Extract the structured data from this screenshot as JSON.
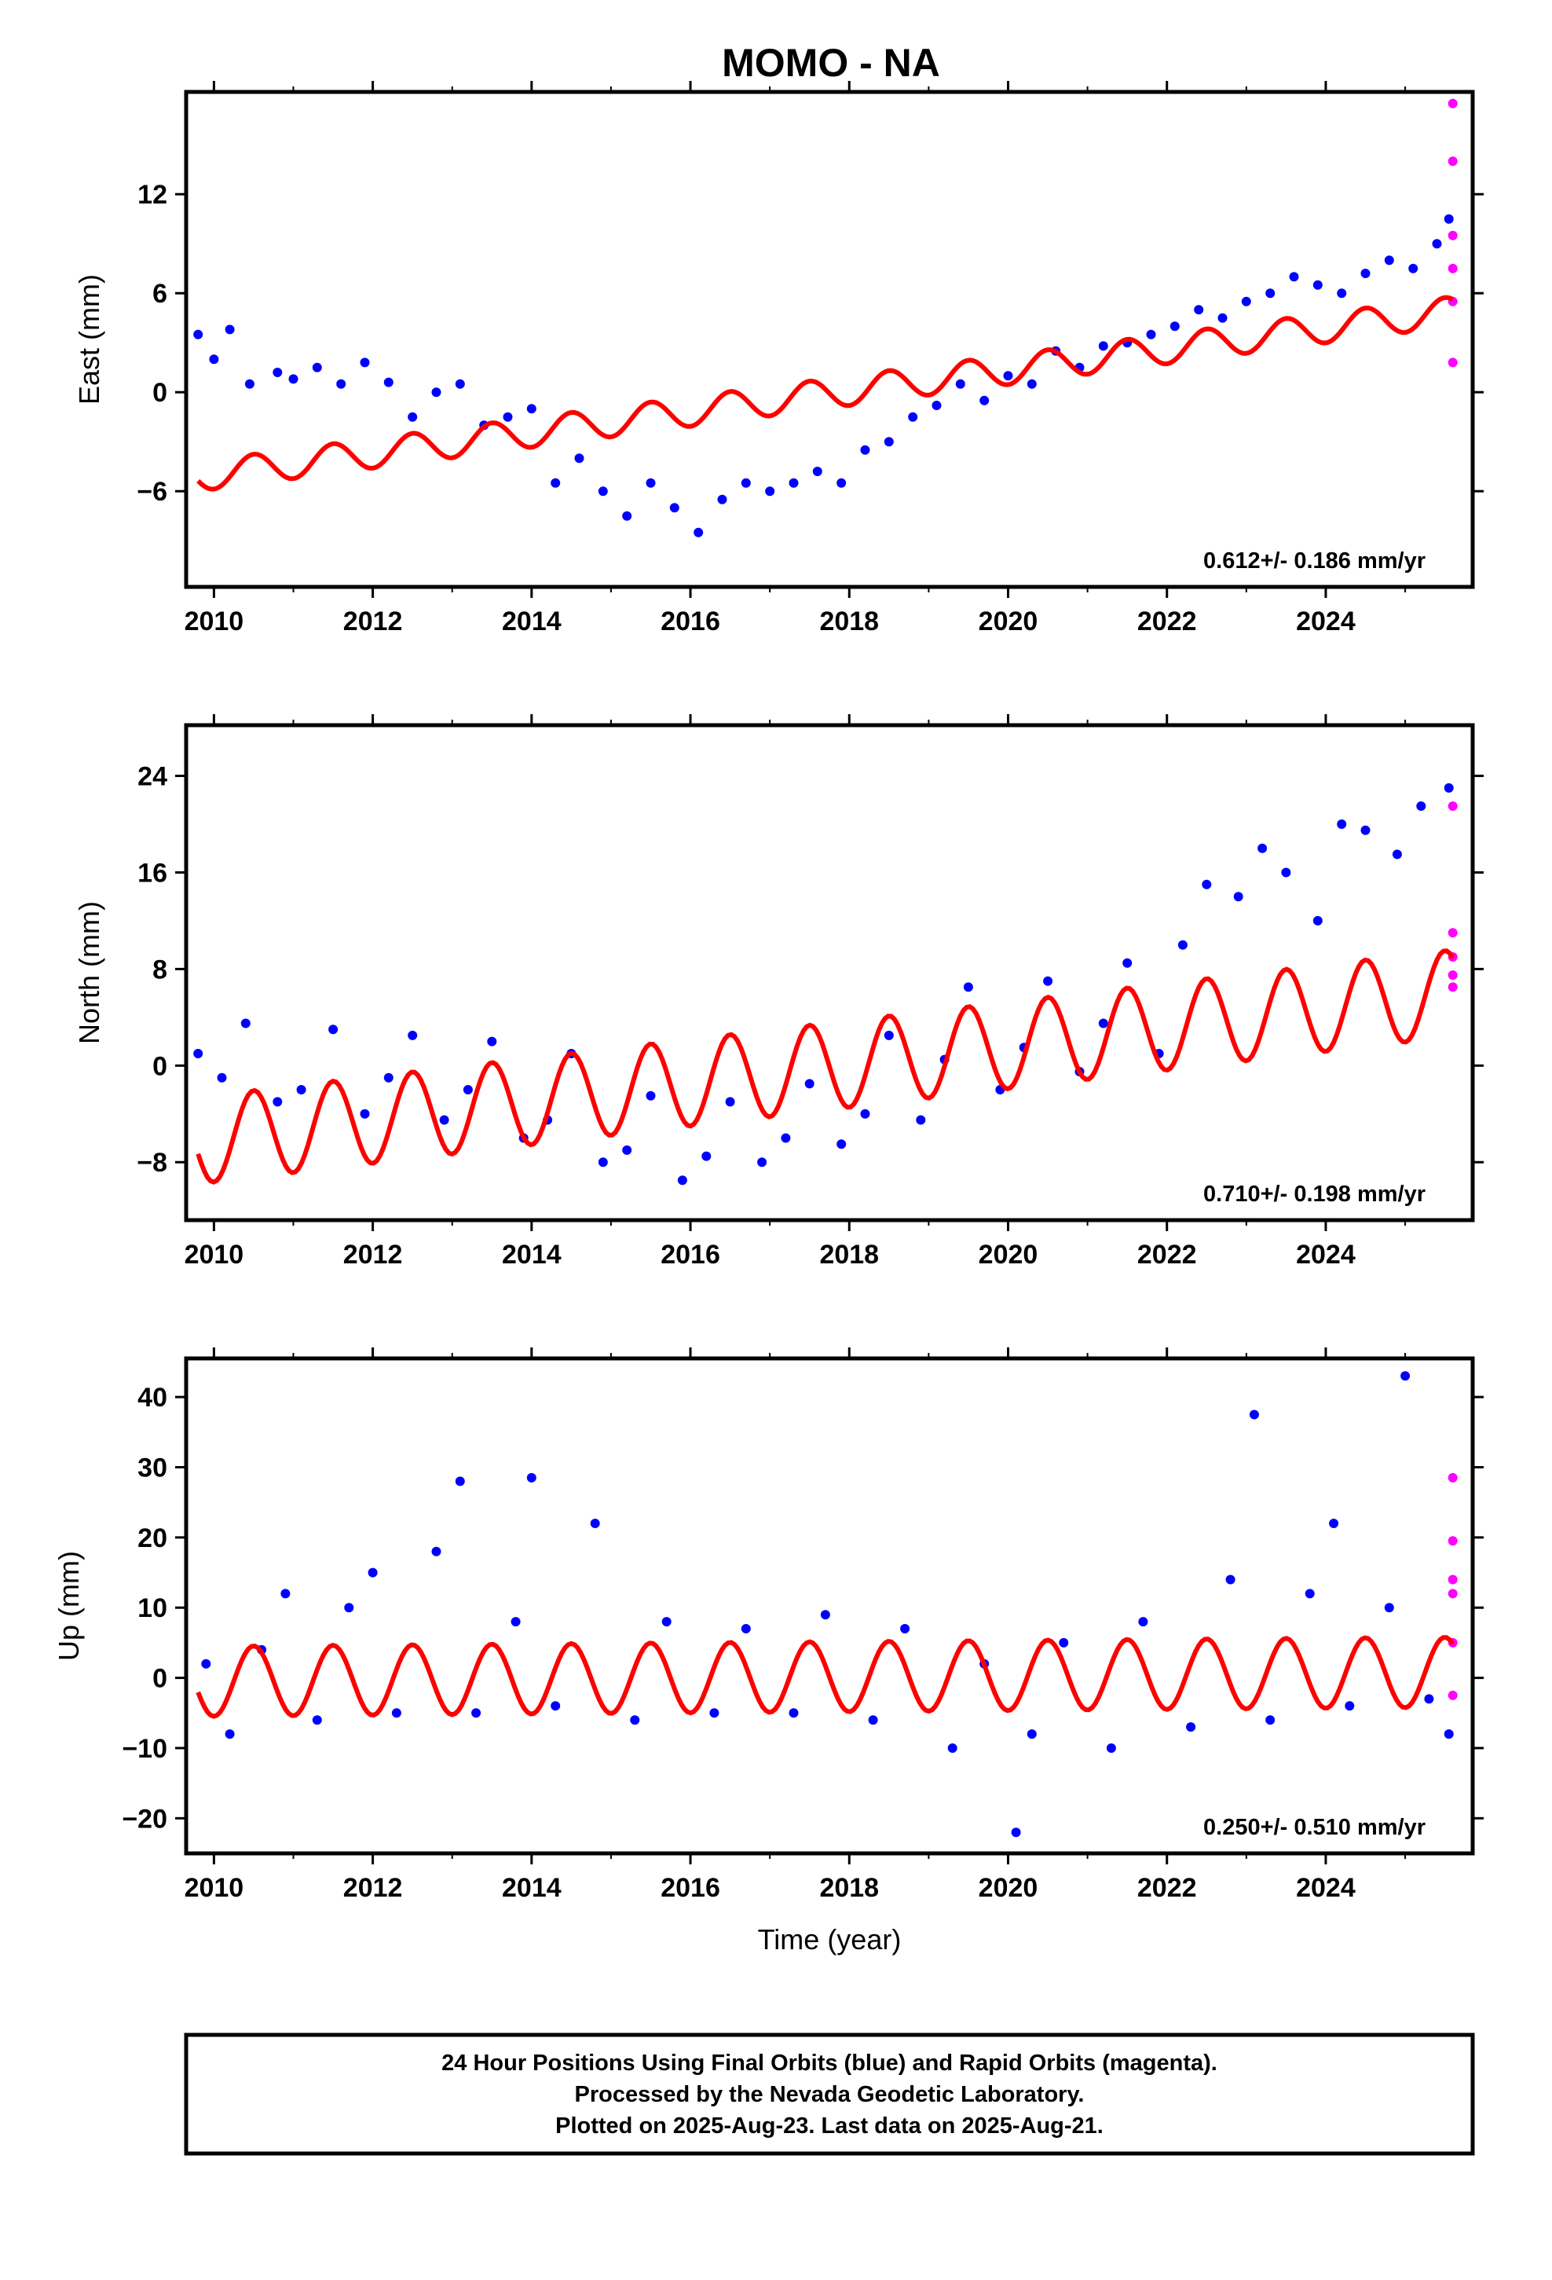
{
  "title": "MOMO - NA",
  "chart_data": [
    {
      "type": "scatter",
      "ylabel": "East (mm)",
      "xlabel": "",
      "xlim": [
        2009.65,
        2025.85
      ],
      "ylim": [
        -11.8,
        18.2
      ],
      "xticks": [
        2010,
        2012,
        2014,
        2016,
        2018,
        2020,
        2022,
        2024
      ],
      "yticks": [
        -6,
        0,
        6,
        12
      ],
      "rate_label": "0.612+/- 0.186 mm/yr",
      "series": [
        {
          "color": "#0000ff",
          "x": [
            2009.8,
            2010.0,
            2010.2,
            2010.45,
            2010.8,
            2011.0,
            2011.3,
            2011.6,
            2011.9,
            2012.2,
            2012.5,
            2012.8,
            2013.1,
            2013.4,
            2013.7,
            2014.0,
            2014.3,
            2014.6,
            2014.9,
            2015.2,
            2015.5,
            2015.8,
            2016.1,
            2016.4,
            2016.7,
            2017.0,
            2017.3,
            2017.6,
            2017.9,
            2018.2,
            2018.5,
            2018.8,
            2019.1,
            2019.4,
            2019.7,
            2020.0,
            2020.3,
            2020.6,
            2020.9,
            2021.2,
            2021.5,
            2021.8,
            2022.1,
            2022.4,
            2022.7,
            2023.0,
            2023.3,
            2023.6,
            2023.9,
            2024.2,
            2024.5,
            2024.8,
            2025.1,
            2025.4,
            2025.55
          ],
          "y": [
            3.5,
            2.0,
            3.8,
            0.5,
            1.2,
            0.8,
            1.5,
            0.5,
            1.8,
            0.6,
            -1.5,
            0.0,
            0.5,
            -2.0,
            -1.5,
            -1.0,
            -5.5,
            -4.0,
            -6.0,
            -7.5,
            -5.5,
            -7.0,
            -8.5,
            -6.5,
            -5.5,
            -6.0,
            -5.5,
            -4.8,
            -5.5,
            -3.5,
            -3.0,
            -1.5,
            -0.8,
            0.5,
            -0.5,
            1.0,
            0.5,
            2.5,
            1.5,
            2.8,
            3.0,
            3.5,
            4.0,
            5.0,
            4.5,
            5.5,
            6.0,
            7.0,
            6.5,
            6.0,
            7.2,
            8.0,
            7.5,
            9.0,
            10.5
          ]
        },
        {
          "color": "#ff00ff",
          "x": [
            2025.6,
            2025.6,
            2025.6,
            2025.6,
            2025.6,
            2025.6
          ],
          "y": [
            17.5,
            14.0,
            9.5,
            7.5,
            5.5,
            1.8
          ]
        }
      ],
      "model": {
        "color": "#ff0000",
        "start": [
          2009.8,
          -5.1
        ],
        "end": [
          2025.6,
          4.9
        ],
        "amplitude": 0.9
      }
    },
    {
      "type": "scatter",
      "ylabel": "North (mm)",
      "xlabel": "",
      "xlim": [
        2009.65,
        2025.85
      ],
      "ylim": [
        -12.8,
        28.2
      ],
      "xticks": [
        2010,
        2012,
        2014,
        2016,
        2018,
        2020,
        2022,
        2024
      ],
      "yticks": [
        -8,
        0,
        8,
        16,
        24
      ],
      "rate_label": "0.710+/- 0.198 mm/yr",
      "series": [
        {
          "color": "#0000ff",
          "x": [
            2009.8,
            2010.1,
            2010.4,
            2010.8,
            2011.1,
            2011.5,
            2011.9,
            2012.2,
            2012.5,
            2012.9,
            2013.2,
            2013.5,
            2013.9,
            2014.2,
            2014.5,
            2014.9,
            2015.2,
            2015.5,
            2015.9,
            2016.2,
            2016.5,
            2016.9,
            2017.2,
            2017.5,
            2017.9,
            2018.2,
            2018.5,
            2018.9,
            2019.2,
            2019.5,
            2019.9,
            2020.2,
            2020.5,
            2020.9,
            2021.2,
            2021.5,
            2021.9,
            2022.2,
            2022.5,
            2022.9,
            2023.2,
            2023.5,
            2023.9,
            2024.2,
            2024.5,
            2024.9,
            2025.2,
            2025.55
          ],
          "y": [
            1.0,
            -1.0,
            3.5,
            -3.0,
            -2.0,
            3.0,
            -4.0,
            -1.0,
            2.5,
            -4.5,
            -2.0,
            2.0,
            -6.0,
            -4.5,
            1.0,
            -8.0,
            -7.0,
            -2.5,
            -9.5,
            -7.5,
            -3.0,
            -8.0,
            -6.0,
            -1.5,
            -6.5,
            -4.0,
            2.5,
            -4.5,
            0.5,
            6.5,
            -2.0,
            1.5,
            7.0,
            -0.5,
            3.5,
            8.5,
            1.0,
            10.0,
            15.0,
            14.0,
            18.0,
            16.0,
            12.0,
            20.0,
            19.5,
            17.5,
            21.5,
            23.0
          ]
        },
        {
          "color": "#ff00ff",
          "x": [
            2025.6,
            2025.6,
            2025.6,
            2025.6,
            2025.6
          ],
          "y": [
            21.5,
            11.0,
            9.0,
            7.5,
            6.5
          ]
        }
      ],
      "model": {
        "color": "#ff0000",
        "start": [
          2009.8,
          -6.2
        ],
        "end": [
          2025.6,
          6.0
        ],
        "amplitude": 3.6
      }
    },
    {
      "type": "scatter",
      "ylabel": "Up (mm)",
      "xlabel": "Time (year)",
      "xlim": [
        2009.65,
        2025.85
      ],
      "ylim": [
        -25,
        45.5
      ],
      "xticks": [
        2010,
        2012,
        2014,
        2016,
        2018,
        2020,
        2022,
        2024
      ],
      "yticks": [
        -20,
        -10,
        0,
        10,
        20,
        30,
        40
      ],
      "rate_label": "0.250+/- 0.510 mm/yr",
      "series": [
        {
          "color": "#0000ff",
          "x": [
            2009.9,
            2010.2,
            2010.6,
            2010.9,
            2011.3,
            2011.7,
            2012.0,
            2012.3,
            2012.8,
            2013.1,
            2013.3,
            2013.8,
            2014.0,
            2014.3,
            2014.8,
            2015.3,
            2015.7,
            2016.3,
            2016.7,
            2017.3,
            2017.7,
            2018.3,
            2018.7,
            2019.3,
            2019.7,
            2020.1,
            2020.3,
            2020.7,
            2021.3,
            2021.7,
            2022.3,
            2022.8,
            2023.1,
            2023.3,
            2023.8,
            2024.1,
            2024.3,
            2024.8,
            2025.0,
            2025.3,
            2025.55
          ],
          "y": [
            2.0,
            -8.0,
            4.0,
            12.0,
            -6.0,
            10.0,
            15.0,
            -5.0,
            18.0,
            28.0,
            -5.0,
            8.0,
            28.5,
            -4.0,
            22.0,
            -6.0,
            8.0,
            -5.0,
            7.0,
            -5.0,
            9.0,
            -6.0,
            7.0,
            -10.0,
            2.0,
            -22.0,
            -8.0,
            5.0,
            -10.0,
            8.0,
            -7.0,
            14.0,
            37.5,
            -6.0,
            12.0,
            22.0,
            -4.0,
            10.0,
            43.0,
            -3.0,
            -8.0
          ]
        },
        {
          "color": "#ff00ff",
          "x": [
            2025.6,
            2025.6,
            2025.6,
            2025.6,
            2025.6,
            2025.6
          ],
          "y": [
            28.5,
            19.5,
            14.0,
            12.0,
            5.0,
            -2.5
          ]
        }
      ],
      "model": {
        "color": "#ff0000",
        "start": [
          2009.8,
          -0.5
        ],
        "end": [
          2025.6,
          0.8
        ],
        "amplitude": 5.0
      }
    }
  ],
  "footer": {
    "line1": "24 Hour Positions Using Final Orbits (blue) and Rapid Orbits (magenta).",
    "line2": "Processed by the Nevada Geodetic Laboratory.",
    "line3": "Plotted on 2025-Aug-23. Last data on 2025-Aug-21."
  }
}
